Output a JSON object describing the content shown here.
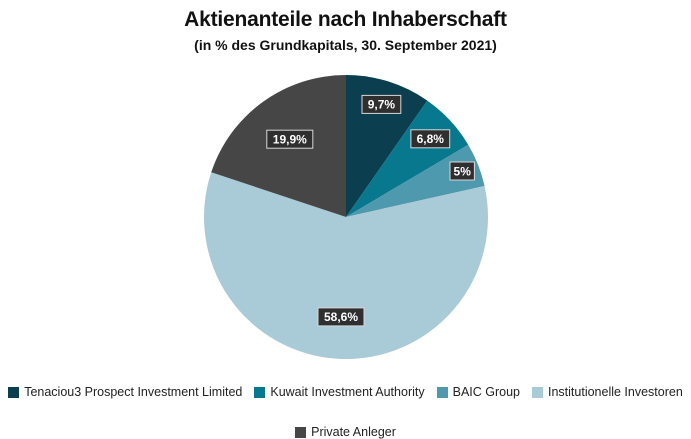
{
  "chart_data": {
    "type": "pie",
    "title": "Aktienanteile nach Inhaberschaft",
    "subtitle": "(in % des Grundkapitals, 30. September 2021)",
    "slices": [
      {
        "label": "Tenaciou3 Prospect Investment Limited",
        "value": 9.7,
        "display": "9,7%",
        "color": "#0b3f4f"
      },
      {
        "label": "Kuwait Investment Authority",
        "value": 6.8,
        "display": "6,8%",
        "color": "#08788e"
      },
      {
        "label": "BAIC Group",
        "value": 5.0,
        "display": "5%",
        "color": "#4e99ae"
      },
      {
        "label": "Institutionelle Investoren",
        "value": 58.6,
        "display": "58,6%",
        "color": "#a9cad7"
      },
      {
        "label": "Private Anleger",
        "value": 19.9,
        "display": "19,9%",
        "color": "#464646"
      }
    ],
    "legend_position": "bottom"
  }
}
